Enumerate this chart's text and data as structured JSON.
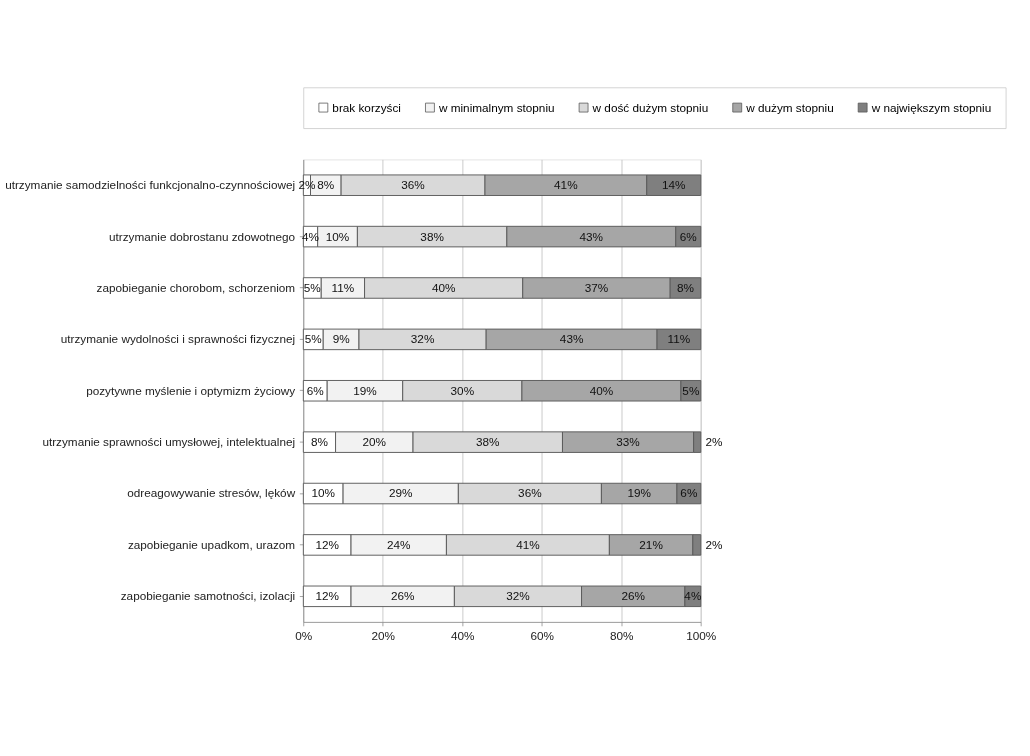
{
  "chart_data": {
    "type": "bar",
    "orientation": "horizontal",
    "stacked": true,
    "categories": [
      "utrzymanie samodzielności funkcjonalno-czynnościowej",
      "utrzymanie dobrostanu zdowotnego",
      "zapobieganie chorobom, schorzeniom",
      "utrzymanie wydolności i sprawności fizycznej",
      "pozytywne myślenie i optymizm życiowy",
      "utrzymanie sprawności umysłowej, intelektualnej",
      "odreagowywanie stresów, lęków",
      "zapobieganie upadkom, urazom",
      "zapobieganie samotności, izolacji"
    ],
    "series": [
      {
        "name": "brak korzyści",
        "color": "#ffffff",
        "values": [
          1.8,
          3.6,
          4.5,
          5,
          6,
          8.1,
          10,
          12,
          12
        ],
        "value_labels": [
          "2%",
          "4%",
          "5%",
          "5%",
          "6%",
          "8%",
          "10%",
          "12%",
          "12%"
        ]
      },
      {
        "name": "w minimalnym stopniu",
        "color": "#f2f2f2",
        "values": [
          7.7,
          10.0,
          10.9,
          9,
          19,
          19.5,
          29,
          24,
          26
        ],
        "value_labels": [
          "8%",
          "10%",
          "11%",
          "9%",
          "19%",
          "20%",
          "29%",
          "24%",
          "26%"
        ]
      },
      {
        "name": "w dość dużym stopniu",
        "color": "#d9d9d9",
        "values": [
          36.2,
          37.6,
          39.8,
          32,
          30,
          37.6,
          36,
          41,
          32
        ],
        "value_labels": [
          "36%",
          "38%",
          "40%",
          "32%",
          "30%",
          "38%",
          "36%",
          "41%",
          "32%"
        ]
      },
      {
        "name": "w dużym stopniu",
        "color": "#a6a6a6",
        "values": [
          40.7,
          42.5,
          37.1,
          43,
          40,
          33.0,
          19,
          21,
          26
        ],
        "value_labels": [
          "41%",
          "43%",
          "37%",
          "43%",
          "40%",
          "33%",
          "19%",
          "21%",
          "26%"
        ]
      },
      {
        "name": "w największym stopniu",
        "color": "#7f7f7f",
        "values": [
          13.6,
          6.3,
          7.7,
          11,
          5,
          1.8,
          6,
          2,
          4
        ],
        "value_labels": [
          "14%",
          "6%",
          "8%",
          "11%",
          "5%",
          "2%",
          "6%",
          "2%",
          "4%"
        ]
      }
    ],
    "xlim": [
      0,
      100
    ],
    "xticks": [
      {
        "value": 0,
        "label": "0%"
      },
      {
        "value": 20,
        "label": "20%"
      },
      {
        "value": 40,
        "label": "40%"
      },
      {
        "value": 60,
        "label": "60%"
      },
      {
        "value": 80,
        "label": "80%"
      },
      {
        "value": 100,
        "label": "100%"
      }
    ],
    "grid": "x",
    "legend": "top"
  }
}
